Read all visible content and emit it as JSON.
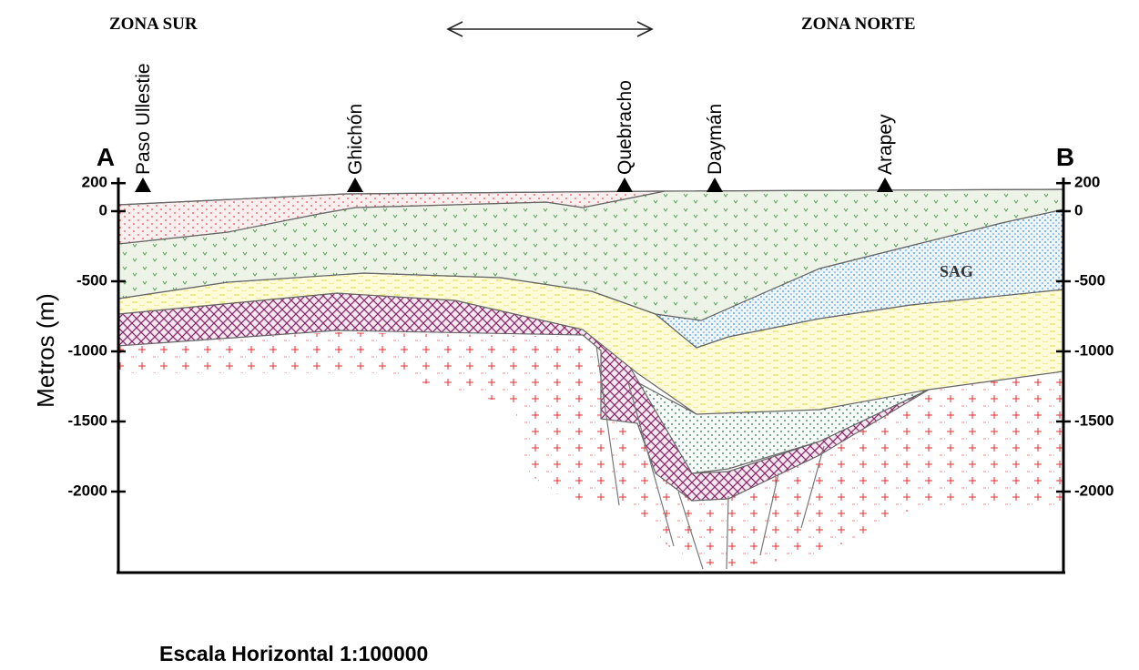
{
  "header": {
    "zone_left": "ZONA SUR",
    "zone_right": "ZONA NORTE"
  },
  "endpoints": {
    "left": "A",
    "right": "B"
  },
  "localities": [
    "Paso Ullestie",
    "Ghichón",
    "Quebracho",
    "Daymán",
    "Arapey"
  ],
  "y_axis": {
    "label": "Metros (m)",
    "ticks": [
      200,
      0,
      -500,
      -1000,
      -1500,
      -2000
    ]
  },
  "layer_label": "SAG",
  "scale": "Escala Horizontal 1:100000"
}
